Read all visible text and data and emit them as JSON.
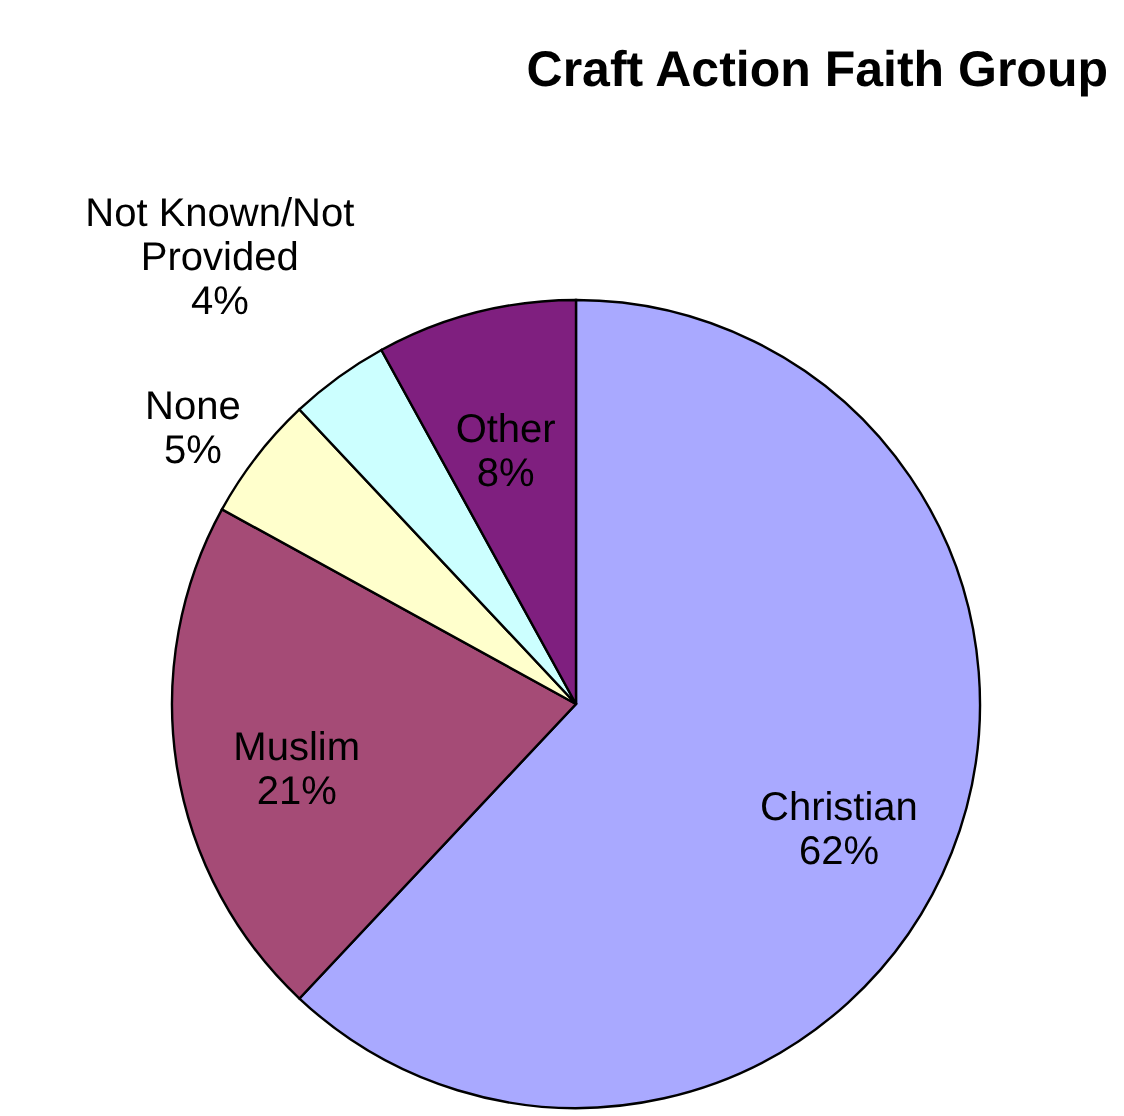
{
  "chart_data": {
    "type": "pie",
    "title": "Craft Action Faith Group",
    "categories": [
      "Christian",
      "Muslim",
      "None",
      "Not Known/Not Provided",
      "Other"
    ],
    "values": [
      62,
      21,
      5,
      4,
      8
    ],
    "value_labels": [
      "62%",
      "21%",
      "5%",
      "4%",
      "8%"
    ],
    "colors": [
      "#a9a9ff",
      "#a54b76",
      "#ffffcc",
      "#ccffff",
      "#7f1f7f"
    ],
    "legend": false
  }
}
